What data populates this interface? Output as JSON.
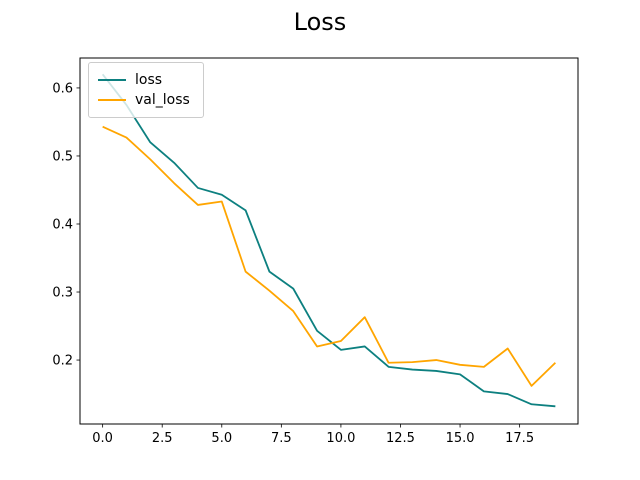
{
  "chart_data": {
    "type": "line",
    "title": "Loss",
    "xlabel": "",
    "ylabel": "",
    "grid": false,
    "legend_position": "upper left",
    "background_color": "#ffffff",
    "axis_color": "#000000",
    "xlim": [
      -0.95,
      19.95
    ],
    "ylim": [
      0.106,
      0.644
    ],
    "xticks": {
      "values": [
        0.0,
        2.5,
        5.0,
        7.5,
        10.0,
        12.5,
        15.0,
        17.5
      ],
      "labels": [
        "0.0",
        "2.5",
        "5.0",
        "7.5",
        "10.0",
        "12.5",
        "15.0",
        "17.5"
      ]
    },
    "yticks": {
      "values": [
        0.2,
        0.3,
        0.4,
        0.5,
        0.6
      ],
      "labels": [
        "0.2",
        "0.3",
        "0.4",
        "0.5",
        "0.6"
      ]
    },
    "x": [
      0,
      1,
      2,
      3,
      4,
      5,
      6,
      7,
      8,
      9,
      10,
      11,
      12,
      13,
      14,
      15,
      16,
      17,
      18,
      19
    ],
    "series": [
      {
        "name": "loss",
        "color": "#0d8080",
        "values": [
          0.62,
          0.575,
          0.52,
          0.49,
          0.453,
          0.443,
          0.42,
          0.33,
          0.305,
          0.243,
          0.215,
          0.22,
          0.19,
          0.186,
          0.184,
          0.179,
          0.154,
          0.15,
          0.135,
          0.132
        ]
      },
      {
        "name": "val_loss",
        "color": "#ffa500",
        "values": [
          0.543,
          0.527,
          0.495,
          0.46,
          0.428,
          0.433,
          0.33,
          0.302,
          0.272,
          0.22,
          0.228,
          0.263,
          0.196,
          0.197,
          0.2,
          0.193,
          0.19,
          0.217,
          0.162,
          0.196
        ]
      }
    ]
  }
}
